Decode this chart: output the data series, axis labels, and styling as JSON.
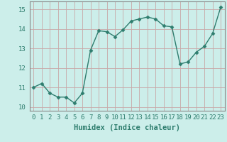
{
  "x": [
    0,
    1,
    2,
    3,
    4,
    5,
    6,
    7,
    8,
    9,
    10,
    11,
    12,
    13,
    14,
    15,
    16,
    17,
    18,
    19,
    20,
    21,
    22,
    23
  ],
  "y": [
    11.0,
    11.2,
    10.7,
    10.5,
    10.5,
    10.2,
    10.7,
    12.9,
    13.9,
    13.85,
    13.6,
    13.95,
    14.4,
    14.5,
    14.6,
    14.5,
    14.15,
    14.1,
    12.2,
    12.3,
    12.8,
    13.1,
    13.75,
    15.1
  ],
  "line_color": "#2e7d6e",
  "marker": "D",
  "marker_size": 2.5,
  "bg_color": "#cceeea",
  "grid_major_color": "#c8a8a8",
  "grid_minor_color": "#c8a8a8",
  "xlabel": "Humidex (Indice chaleur)",
  "ylim": [
    9.8,
    15.4
  ],
  "xlim": [
    -0.5,
    23.5
  ],
  "yticks": [
    10,
    11,
    12,
    13,
    14,
    15
  ],
  "xticks": [
    0,
    1,
    2,
    3,
    4,
    5,
    6,
    7,
    8,
    9,
    10,
    11,
    12,
    13,
    14,
    15,
    16,
    17,
    18,
    19,
    20,
    21,
    22,
    23
  ],
  "xlabel_fontsize": 7.5,
  "tick_fontsize": 6.5,
  "tick_color": "#2e7d6e",
  "spine_color": "#888888",
  "line_width": 1.0
}
